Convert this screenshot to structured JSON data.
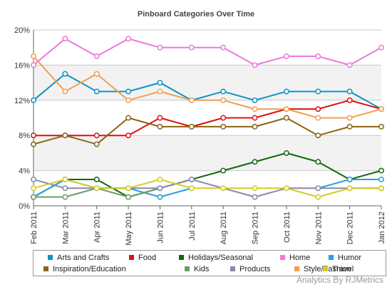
{
  "chart_data": {
    "type": "line",
    "title": "Pinboard Categories Over Time",
    "categories": [
      "Feb 2011",
      "Mar 2011",
      "Apr 2011",
      "May 2011",
      "Jun 2011",
      "Jul 2011",
      "Aug 2011",
      "Sep 2011",
      "Oct 2011",
      "Nov 2011",
      "Dec 2011",
      "Jan 2012"
    ],
    "ylim": [
      0,
      20
    ],
    "yticks": [
      0,
      4,
      8,
      12,
      16,
      20
    ],
    "ytick_labels": [
      "0%",
      "4%",
      "8%",
      "12%",
      "16%",
      "20%"
    ],
    "grid": true,
    "legend_position": "bottom",
    "series": [
      {
        "name": "Arts and Crafts",
        "color": "#1190c6",
        "values": [
          12,
          15,
          13,
          13,
          14,
          12,
          13,
          12,
          13,
          13,
          13,
          11
        ]
      },
      {
        "name": "Food",
        "color": "#dd1111",
        "values": [
          8,
          8,
          8,
          8,
          10,
          9,
          10,
          10,
          11,
          11,
          12,
          11
        ]
      },
      {
        "name": "Holidays/Seasonal",
        "color": "#116611",
        "values": [
          1,
          3,
          3,
          1,
          2,
          3,
          4,
          5,
          6,
          5,
          3,
          4
        ]
      },
      {
        "name": "Home",
        "color": "#ee77dd",
        "values": [
          16,
          19,
          17,
          19,
          18,
          18,
          18,
          16,
          17,
          17,
          16,
          18
        ]
      },
      {
        "name": "Humor",
        "color": "#22a0e0",
        "values": [
          1,
          3,
          2,
          2,
          1,
          2,
          null,
          null,
          null,
          2,
          3,
          3
        ]
      },
      {
        "name": "Inspiration/Education",
        "color": "#8b6412",
        "values": [
          7,
          8,
          7,
          10,
          9,
          9,
          9,
          9,
          10,
          8,
          9,
          9
        ]
      },
      {
        "name": "Kids",
        "color": "#66a066",
        "values": [
          1,
          1,
          2,
          1,
          2,
          null,
          null,
          null,
          null,
          null,
          null,
          null
        ]
      },
      {
        "name": "Products",
        "color": "#8888aa",
        "values": [
          3,
          2,
          2,
          2,
          2,
          3,
          2,
          1,
          2,
          2,
          2,
          2
        ]
      },
      {
        "name": "Style/Fashion",
        "color": "#f0a050",
        "values": [
          17,
          13,
          15,
          12,
          13,
          12,
          12,
          11,
          11,
          10,
          10,
          11
        ]
      },
      {
        "name": "Travel",
        "color": "#d4cc22",
        "values": [
          2,
          3,
          2,
          2,
          3,
          2,
          2,
          2,
          2,
          1,
          2,
          2
        ]
      }
    ]
  },
  "credit": "Analytics By RJMetrics"
}
